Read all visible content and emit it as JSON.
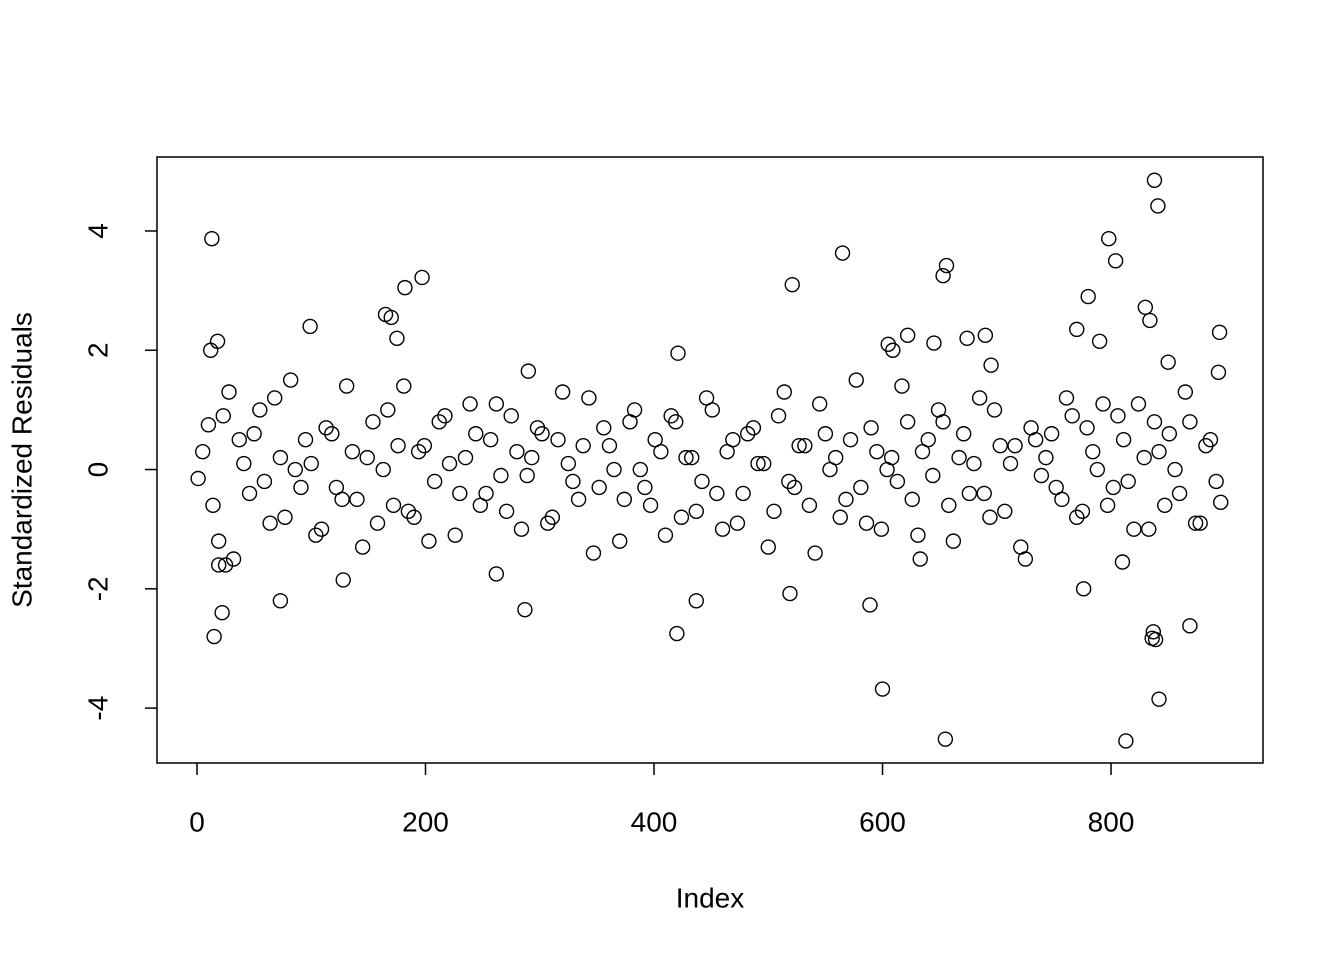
{
  "chart_data": {
    "type": "scatter",
    "xlabel": "Index",
    "ylabel": "Standardized Residuals",
    "xlim": [
      -35,
      933
    ],
    "ylim": [
      -4.92,
      5.24
    ],
    "xticks": [
      0,
      200,
      400,
      600,
      800
    ],
    "yticks": [
      -4,
      -2,
      0,
      2,
      4
    ],
    "color": "#000000",
    "grid": false,
    "x": [
      1,
      10,
      19,
      28,
      37,
      46,
      55,
      64,
      73,
      82,
      91,
      100,
      109,
      118,
      127,
      136,
      145,
      154,
      163,
      172,
      181,
      190,
      199,
      208,
      217,
      226,
      235,
      244,
      253,
      262,
      271,
      280,
      289,
      298,
      307,
      316,
      325,
      334,
      343,
      352,
      361,
      370,
      379,
      388,
      397,
      406,
      415,
      424,
      433,
      442,
      451,
      460,
      469,
      478,
      487,
      496,
      505,
      514,
      523,
      532,
      541,
      550,
      559,
      568,
      577,
      586,
      595,
      604,
      613,
      622,
      631,
      640,
      649,
      658,
      667,
      676,
      685,
      694,
      703,
      712,
      721,
      730,
      739,
      748,
      757,
      766,
      775,
      784,
      793,
      802,
      811,
      820,
      829,
      838,
      847,
      856,
      865,
      874,
      883,
      892,
      5,
      14,
      23,
      32,
      41,
      50,
      59,
      68,
      77,
      86,
      95,
      104,
      113,
      122,
      131,
      140,
      149,
      158,
      167,
      176,
      185,
      194,
      203,
      212,
      221,
      230,
      239,
      248,
      257,
      266,
      275,
      284,
      293,
      302,
      311,
      320,
      329,
      338,
      347,
      356,
      365,
      374,
      383,
      392,
      401,
      410,
      419,
      428,
      437,
      446,
      455,
      464,
      473,
      482,
      491,
      500,
      509,
      518,
      527,
      536,
      545,
      554,
      563,
      572,
      581,
      590,
      599,
      608,
      617,
      626,
      635,
      644,
      653,
      662,
      671,
      680,
      689,
      698,
      707,
      716,
      725,
      734,
      743,
      752,
      761,
      770,
      779,
      788,
      797,
      806,
      815,
      824,
      833,
      842,
      851,
      860,
      869,
      878,
      887,
      896,
      13,
      15,
      18,
      22,
      12,
      19,
      25,
      73,
      99,
      165,
      170,
      175,
      182,
      197,
      128,
      287,
      262,
      290,
      420,
      421,
      437,
      521,
      519,
      565,
      589,
      600,
      655,
      653,
      656,
      780,
      798,
      804,
      813,
      830,
      834,
      838,
      841,
      842,
      836,
      837,
      839,
      869,
      895,
      894,
      850,
      770,
      776,
      790,
      810,
      695,
      690,
      674,
      645,
      622,
      605,
      609,
      633
    ],
    "values": [
      -0.15,
      0.75,
      -1.2,
      1.3,
      0.5,
      -0.4,
      1.0,
      -0.9,
      0.2,
      1.5,
      -0.3,
      0.1,
      -1.0,
      0.6,
      -0.5,
      0.3,
      -1.3,
      0.8,
      0.0,
      -0.6,
      1.4,
      -0.8,
      0.4,
      -0.2,
      0.9,
      -1.1,
      0.2,
      0.6,
      -0.4,
      1.1,
      -0.7,
      0.3,
      -0.1,
      0.7,
      -0.9,
      0.5,
      0.1,
      -0.5,
      1.2,
      -0.3,
      0.4,
      -1.2,
      0.8,
      0.0,
      -0.6,
      0.3,
      0.9,
      -0.8,
      0.2,
      -0.2,
      1.0,
      -1.0,
      0.5,
      -0.4,
      0.7,
      0.1,
      -0.7,
      1.3,
      -0.3,
      0.4,
      -1.4,
      0.6,
      0.2,
      -0.5,
      1.5,
      -0.9,
      0.3,
      0.0,
      -0.2,
      0.8,
      -1.1,
      0.5,
      1.0,
      -0.6,
      0.2,
      -0.4,
      1.2,
      -0.8,
      0.4,
      0.1,
      -1.3,
      0.7,
      -0.1,
      0.6,
      -0.5,
      0.9,
      -0.7,
      0.3,
      1.1,
      -0.3,
      0.5,
      -1.0,
      0.2,
      0.8,
      -0.6,
      0.0,
      1.3,
      -0.9,
      0.4,
      -0.2,
      0.3,
      -0.6,
      0.9,
      -1.5,
      0.1,
      0.6,
      -0.2,
      1.2,
      -0.8,
      0.0,
      0.5,
      -1.1,
      0.7,
      -0.3,
      1.4,
      -0.5,
      0.2,
      -0.9,
      1.0,
      0.4,
      -0.7,
      0.3,
      -1.2,
      0.8,
      0.1,
      -0.4,
      1.1,
      -0.6,
      0.5,
      -0.1,
      0.9,
      -1.0,
      0.2,
      0.6,
      -0.8,
      1.3,
      -0.2,
      0.4,
      -1.4,
      0.7,
      0.0,
      -0.5,
      1.0,
      -0.3,
      0.5,
      -1.1,
      0.8,
      0.2,
      -0.7,
      1.2,
      -0.4,
      0.3,
      -0.9,
      0.6,
      0.1,
      -1.3,
      0.9,
      -0.2,
      0.4,
      -0.6,
      1.1,
      0.0,
      -0.8,
      0.5,
      -0.3,
      0.7,
      -1.0,
      0.2,
      1.4,
      -0.5,
      0.3,
      -0.1,
      0.8,
      -1.2,
      0.6,
      0.1,
      -0.4,
      1.0,
      -0.7,
      0.4,
      -1.5,
      0.5,
      0.2,
      -0.3,
      1.2,
      -0.8,
      0.7,
      0.0,
      -0.6,
      0.9,
      -0.2,
      1.1,
      -1.0,
      0.3,
      0.6,
      -0.4,
      0.8,
      -0.9,
      0.5,
      -0.55,
      3.87,
      -2.8,
      2.15,
      -2.4,
      2.0,
      -1.6,
      -1.6,
      -2.2,
      2.4,
      2.6,
      2.55,
      2.2,
      3.05,
      3.22,
      -1.85,
      -2.35,
      -1.75,
      1.65,
      -2.75,
      1.95,
      -2.2,
      3.1,
      -2.08,
      3.63,
      -2.27,
      -3.68,
      -4.52,
      3.25,
      3.42,
      2.9,
      3.87,
      3.5,
      -4.55,
      2.72,
      2.5,
      4.85,
      4.42,
      -3.85,
      -2.83,
      -2.72,
      -2.85,
      -2.62,
      2.3,
      1.63,
      1.8,
      2.35,
      -2.0,
      2.15,
      -1.55,
      1.75,
      2.25,
      2.2,
      2.12,
      2.25,
      2.1,
      2.0,
      -1.5
    ]
  }
}
